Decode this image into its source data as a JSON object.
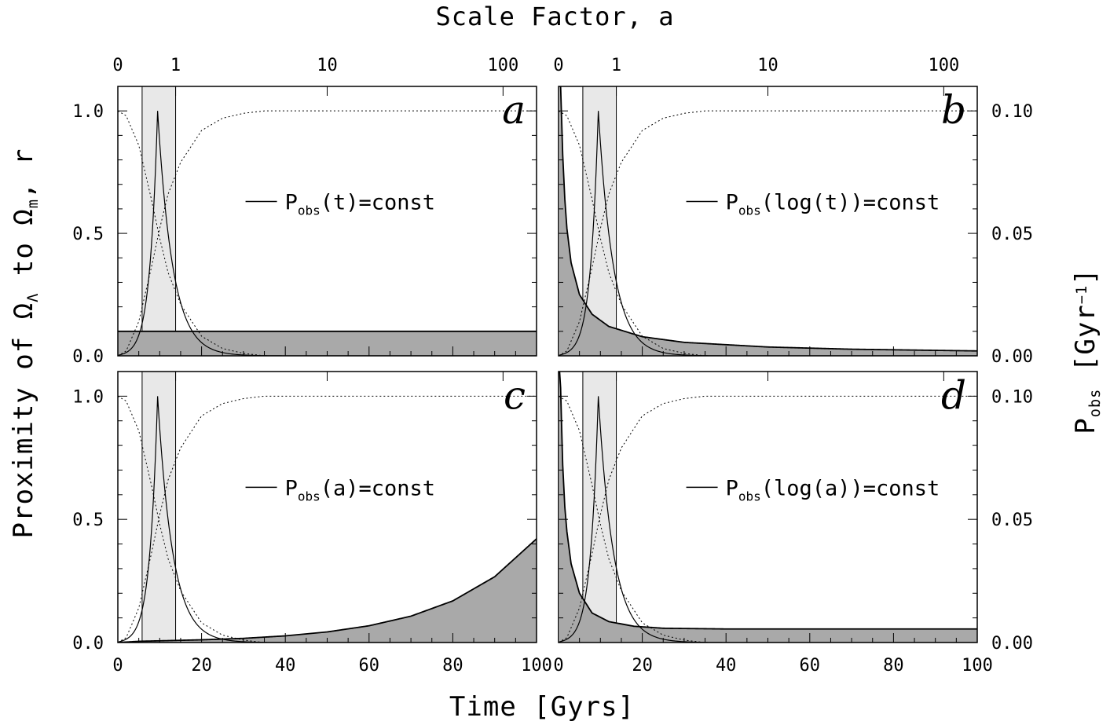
{
  "figure": {
    "top_axis_title": "Scale Factor, a",
    "bottom_axis_title": "Time [Gyrs]",
    "left_axis_title": {
      "a": "Proximity of Ω",
      "b": "Λ",
      "c": " to Ω",
      "d": "m",
      "e": ", r"
    },
    "right_axis_title": {
      "a": "P",
      "b": "obs",
      "c": " [Gyr",
      "d": "−1",
      "e": "]"
    }
  },
  "chart_data": [
    {
      "type": "area",
      "panel_letter": "a",
      "legend": {
        "p": "P",
        "sub": "obs",
        "rest": "(t)=const"
      },
      "xlim": [
        0,
        100
      ],
      "ylim": [
        0,
        1.1
      ],
      "y2lim": [
        0,
        0.11
      ],
      "xticks": [
        0,
        20,
        40,
        60,
        80,
        100
      ],
      "yticks": [
        0.0,
        0.5,
        1.0
      ],
      "y2ticks": [
        0.0,
        0.05,
        0.1
      ],
      "top_ticks": [
        {
          "t": 0,
          "label": "0"
        },
        {
          "t": 13.8,
          "label": "1"
        },
        {
          "t": 50,
          "label": "10"
        },
        {
          "t": 92,
          "label": "100"
        }
      ],
      "shaded_band": [
        5.8,
        13.8
      ],
      "proximity_peak": 9.5,
      "p_obs": {
        "t": [
          0,
          100
        ],
        "values": [
          0.01,
          0.01
        ]
      },
      "omega_lambda": {
        "t": [
          0,
          2,
          5,
          8,
          10,
          12,
          15,
          20,
          25,
          30,
          35,
          40,
          60,
          100
        ],
        "values": [
          0.0,
          0.02,
          0.14,
          0.36,
          0.52,
          0.66,
          0.79,
          0.92,
          0.97,
          0.99,
          1.0,
          1.0,
          1.0,
          1.0
        ]
      },
      "omega_m": {
        "t": [
          0,
          2,
          5,
          8,
          10,
          12,
          15,
          20,
          25,
          30,
          35,
          40,
          60,
          100
        ],
        "values": [
          1.0,
          0.98,
          0.86,
          0.64,
          0.48,
          0.34,
          0.21,
          0.08,
          0.03,
          0.01,
          0.0,
          0.0,
          0.0,
          0.0
        ]
      }
    },
    {
      "type": "area",
      "panel_letter": "b",
      "legend": {
        "p": "P",
        "sub": "obs",
        "rest": "(log(t))=const"
      },
      "xlim": [
        0,
        100
      ],
      "ylim": [
        0,
        1.1
      ],
      "y2lim": [
        0,
        0.11
      ],
      "xticks": [
        0,
        20,
        40,
        60,
        80,
        100
      ],
      "yticks": [
        0.0,
        0.5,
        1.0
      ],
      "y2ticks": [
        0.0,
        0.05,
        0.1
      ],
      "top_ticks": [
        {
          "t": 0,
          "label": "0"
        },
        {
          "t": 13.8,
          "label": "1"
        },
        {
          "t": 50,
          "label": "10"
        },
        {
          "t": 92,
          "label": "100"
        }
      ],
      "shaded_band": [
        5.8,
        13.8
      ],
      "proximity_peak": 9.5,
      "p_obs": {
        "t": [
          0.2,
          0.5,
          1,
          1.5,
          2,
          3,
          5,
          8,
          12,
          20,
          30,
          50,
          70,
          100
        ],
        "values": [
          0.11,
          0.11,
          0.082,
          0.064,
          0.052,
          0.038,
          0.025,
          0.017,
          0.012,
          0.0078,
          0.0055,
          0.0036,
          0.0027,
          0.002
        ]
      },
      "omega_lambda": {
        "t": [
          0,
          2,
          5,
          8,
          10,
          12,
          15,
          20,
          25,
          30,
          35,
          40,
          60,
          100
        ],
        "values": [
          0.0,
          0.02,
          0.14,
          0.36,
          0.52,
          0.66,
          0.79,
          0.92,
          0.97,
          0.99,
          1.0,
          1.0,
          1.0,
          1.0
        ]
      },
      "omega_m": {
        "t": [
          0,
          2,
          5,
          8,
          10,
          12,
          15,
          20,
          25,
          30,
          35,
          40,
          60,
          100
        ],
        "values": [
          1.0,
          0.98,
          0.86,
          0.64,
          0.48,
          0.34,
          0.21,
          0.08,
          0.03,
          0.01,
          0.0,
          0.0,
          0.0,
          0.0
        ]
      }
    },
    {
      "type": "area",
      "panel_letter": "c",
      "legend": {
        "p": "P",
        "sub": "obs",
        "rest": "(a)=const"
      },
      "xlim": [
        0,
        100
      ],
      "ylim": [
        0,
        1.1
      ],
      "y2lim": [
        0,
        0.11
      ],
      "xticks": [
        0,
        20,
        40,
        60,
        80,
        100
      ],
      "yticks": [
        0.0,
        0.5,
        1.0
      ],
      "y2ticks": [
        0.0,
        0.05,
        0.1
      ],
      "top_ticks": [
        {
          "t": 0,
          "label": "0"
        },
        {
          "t": 13.8,
          "label": "1"
        },
        {
          "t": 50,
          "label": "10"
        },
        {
          "t": 92,
          "label": "100"
        }
      ],
      "shaded_band": [
        5.8,
        13.8
      ],
      "proximity_peak": 9.5,
      "p_obs": {
        "t": [
          0,
          2,
          5,
          10,
          20,
          30,
          40,
          50,
          60,
          70,
          80,
          90,
          100
        ],
        "values": [
          0.0,
          0.0002,
          0.0005,
          0.0007,
          0.0011,
          0.0017,
          0.0027,
          0.0043,
          0.0068,
          0.0107,
          0.0169,
          0.0267,
          0.0421
        ]
      },
      "omega_lambda": {
        "t": [
          0,
          2,
          5,
          8,
          10,
          12,
          15,
          20,
          25,
          30,
          35,
          40,
          60,
          100
        ],
        "values": [
          0.0,
          0.02,
          0.14,
          0.36,
          0.52,
          0.66,
          0.79,
          0.92,
          0.97,
          0.99,
          1.0,
          1.0,
          1.0,
          1.0
        ]
      },
      "omega_m": {
        "t": [
          0,
          2,
          5,
          8,
          10,
          12,
          15,
          20,
          25,
          30,
          35,
          40,
          60,
          100
        ],
        "values": [
          1.0,
          0.98,
          0.86,
          0.64,
          0.48,
          0.34,
          0.21,
          0.08,
          0.03,
          0.01,
          0.0,
          0.0,
          0.0,
          0.0
        ]
      }
    },
    {
      "type": "area",
      "panel_letter": "d",
      "legend": {
        "p": "P",
        "sub": "obs",
        "rest": "(log(a))=const"
      },
      "xlim": [
        0,
        100
      ],
      "ylim": [
        0,
        1.1
      ],
      "y2lim": [
        0,
        0.11
      ],
      "xticks": [
        0,
        20,
        40,
        60,
        80,
        100
      ],
      "yticks": [
        0.0,
        0.5,
        1.0
      ],
      "y2ticks": [
        0.0,
        0.05,
        0.1
      ],
      "top_ticks": [
        {
          "t": 0,
          "label": "0"
        },
        {
          "t": 13.8,
          "label": "1"
        },
        {
          "t": 50,
          "label": "10"
        },
        {
          "t": 92,
          "label": "100"
        }
      ],
      "shaded_band": [
        5.8,
        13.8
      ],
      "proximity_peak": 9.5,
      "p_obs": {
        "t": [
          0.2,
          0.4,
          0.7,
          1,
          1.5,
          2,
          3,
          5,
          8,
          12,
          18,
          25,
          40,
          70,
          100
        ],
        "values": [
          0.11,
          0.11,
          0.09,
          0.072,
          0.055,
          0.045,
          0.032,
          0.02,
          0.012,
          0.0085,
          0.0066,
          0.0058,
          0.0055,
          0.0055,
          0.0055
        ]
      },
      "omega_lambda": {
        "t": [
          0,
          2,
          5,
          8,
          10,
          12,
          15,
          20,
          25,
          30,
          35,
          40,
          60,
          100
        ],
        "values": [
          0.0,
          0.02,
          0.14,
          0.36,
          0.52,
          0.66,
          0.79,
          0.92,
          0.97,
          0.99,
          1.0,
          1.0,
          1.0,
          1.0
        ]
      },
      "omega_m": {
        "t": [
          0,
          2,
          5,
          8,
          10,
          12,
          15,
          20,
          25,
          30,
          35,
          40,
          60,
          100
        ],
        "values": [
          1.0,
          0.98,
          0.86,
          0.64,
          0.48,
          0.34,
          0.21,
          0.08,
          0.03,
          0.01,
          0.0,
          0.0,
          0.0,
          0.0
        ]
      }
    }
  ],
  "colors": {
    "fill": "#a9a9a9",
    "band": "#e8e8e8",
    "line": "#000000"
  }
}
